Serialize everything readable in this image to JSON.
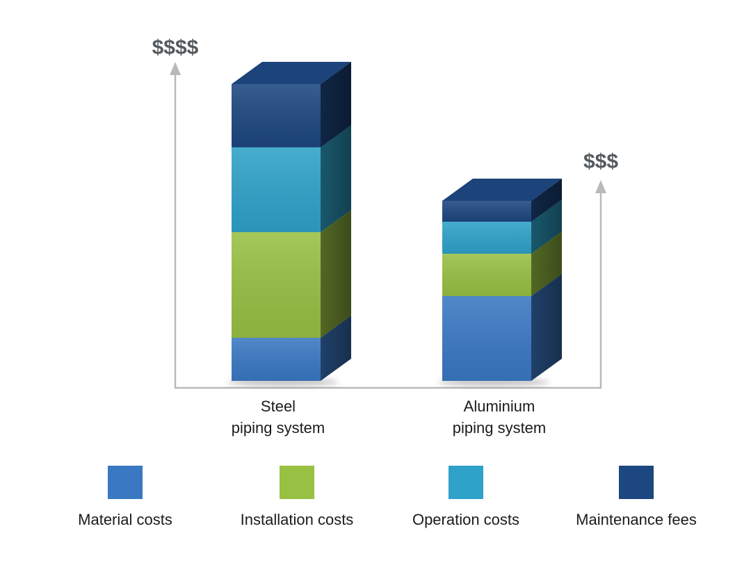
{
  "chart_data": {
    "type": "bar",
    "stacked": true,
    "three_d": true,
    "categories": [
      {
        "line1": "Steel",
        "line2": "piping system"
      },
      {
        "line1": "Aluminium",
        "line2": "piping system"
      }
    ],
    "axis_captions": [
      "$$$$",
      "$$$"
    ],
    "ylim": [
      0,
      427
    ],
    "grid": false,
    "legend_position": "bottom",
    "series": [
      {
        "name": "Material costs",
        "color": "#3a78c3",
        "values": [
          62,
          122
        ]
      },
      {
        "name": "Installation costs",
        "color": "#98c043",
        "values": [
          152,
          61
        ]
      },
      {
        "name": "Operation costs",
        "color": "#2ea2c9",
        "values": [
          122,
          46
        ]
      },
      {
        "name": "Maintenance fees",
        "color": "#1d4780",
        "values": [
          91,
          30
        ]
      }
    ]
  }
}
